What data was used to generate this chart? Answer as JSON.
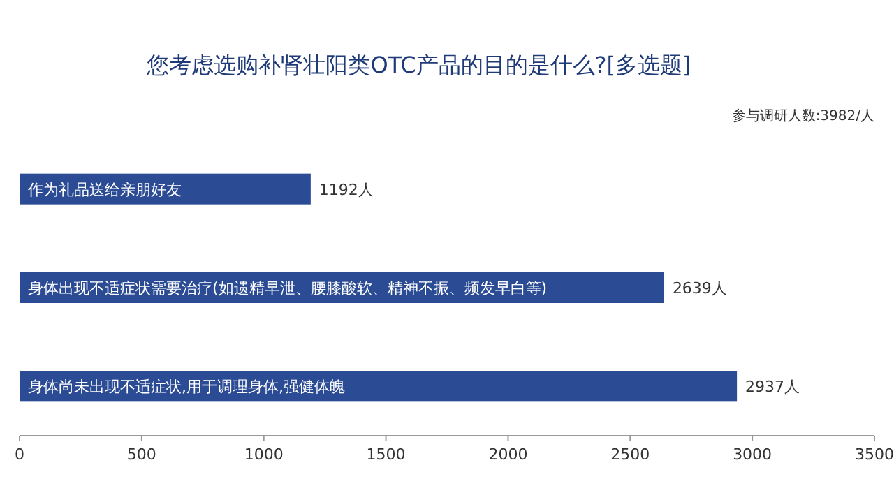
{
  "chart_data": {
    "type": "bar",
    "orientation": "horizontal",
    "title": "您考虑选购补肾壮阳类OTC产品的目的是什么?[多选题]",
    "annotations": [
      "参与调研人数:3982/人"
    ],
    "categories": [
      "作为礼品送给亲朋好友",
      "身体出现不适症状需要治疗(如遗精早泄、腰膝酸软、精神不振、频发早白等)",
      "身体尚未出现不适症状,用于调理身体,强健体魄"
    ],
    "values": [
      1192,
      2639,
      2937
    ],
    "value_labels": [
      "1192人",
      "2639人",
      "2937人"
    ],
    "color": "#2b4c94",
    "xlim": [
      0,
      3500
    ],
    "xticks": [
      0,
      500,
      1000,
      1500,
      2000,
      2500,
      3000,
      3500
    ]
  }
}
